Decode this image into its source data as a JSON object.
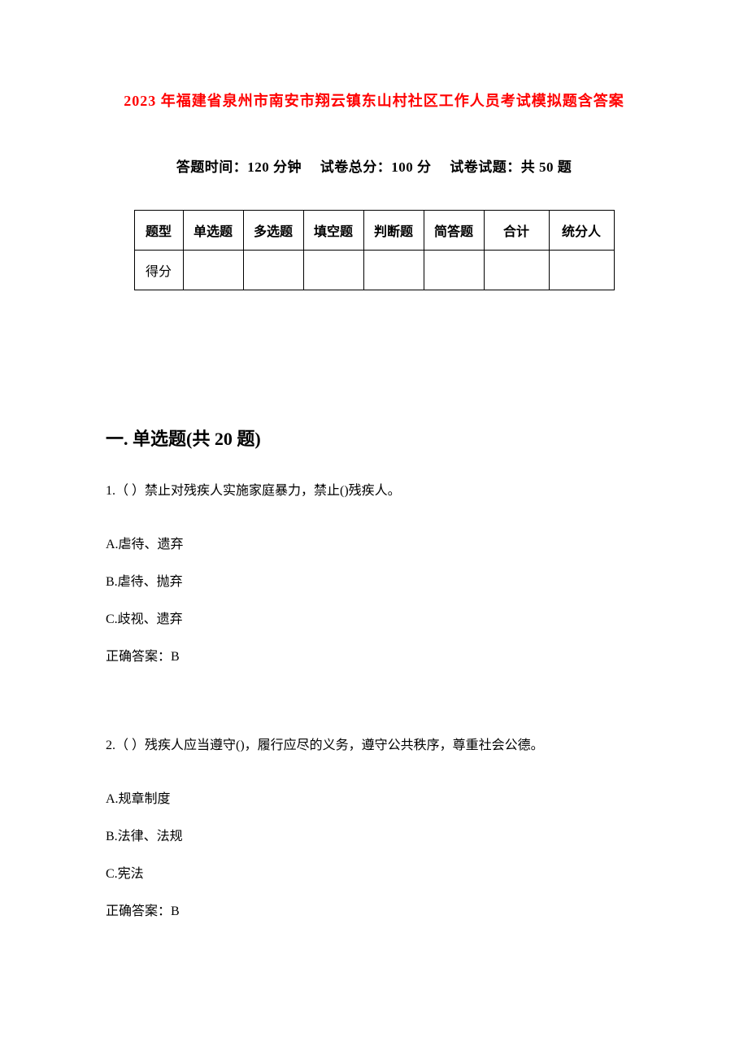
{
  "document": {
    "title": "2023 年福建省泉州市南安市翔云镇东山村社区工作人员考试模拟题含答案",
    "title_color": "#ff0000",
    "title_fontsize": 18,
    "exam_info": {
      "time_label": "答题时间：",
      "time_value": "120 分钟",
      "total_label": "试卷总分：",
      "total_value": "100 分",
      "questions_label": "试卷试题：",
      "questions_value": "共 50 题",
      "fontsize": 17
    },
    "score_table": {
      "row1": {
        "label": "题型",
        "cols": [
          "单选题",
          "多选题",
          "填空题",
          "判断题",
          "简答题",
          "合计",
          "统分人"
        ]
      },
      "row2": {
        "label": "得分",
        "cols": [
          "",
          "",
          "",
          "",
          "",
          "",
          ""
        ]
      },
      "border_color": "#000000",
      "fontsize": 16,
      "col_widths": {
        "label": 60,
        "type": 74,
        "total": 80,
        "scorer": 80
      }
    },
    "section_heading": "一. 单选题(共 20 题)",
    "section_fontsize": 22,
    "questions": [
      {
        "text": "1.（ ）禁止对残疾人实施家庭暴力，禁止()残疾人。",
        "options": [
          "A.虐待、遗弃",
          "B.虐待、抛弃",
          "C.歧视、遗弃"
        ],
        "answer": "正确答案：B"
      },
      {
        "text": "2.（ ）残疾人应当遵守()，履行应尽的义务，遵守公共秩序，尊重社会公德。",
        "options": [
          "A.规章制度",
          "B.法律、法规",
          "C.宪法"
        ],
        "answer": "正确答案：B"
      }
    ],
    "body_fontsize": 16,
    "text_color": "#000000",
    "background_color": "#ffffff"
  }
}
